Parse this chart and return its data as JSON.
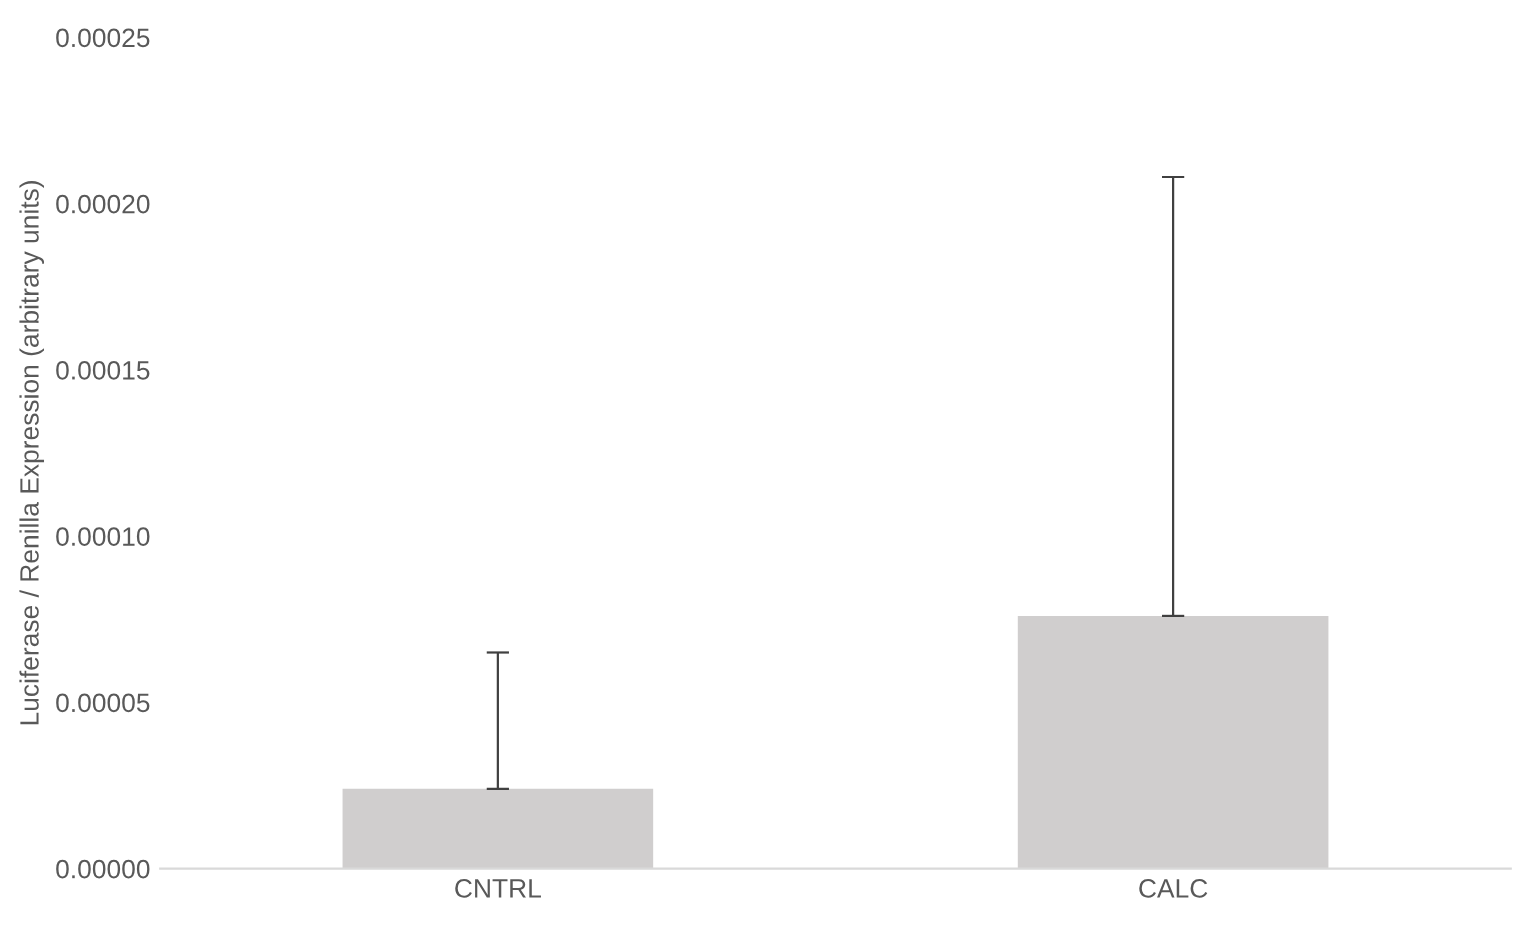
{
  "chart_data": {
    "type": "bar",
    "ylabel": "Luciferase / Renilla Expression (arbitrary units)",
    "categories": [
      "CNTRL",
      "CALC"
    ],
    "values": [
      2.4e-05,
      7.6e-05
    ],
    "errors": [
      [
        2.4e-05,
        6.5e-05
      ],
      [
        7.6e-05,
        0.000208
      ]
    ],
    "color": "#d0cece",
    "ylim": [
      0,
      0.00025
    ],
    "yticks": [
      {
        "value": 0,
        "label": "0.00000"
      },
      {
        "value": 5e-05,
        "label": "0.00005"
      },
      {
        "value": 0.0001,
        "label": "0.00010"
      },
      {
        "value": 0.00015,
        "label": "0.00015"
      },
      {
        "value": 0.0002,
        "label": "0.00020"
      },
      {
        "value": 0.00025,
        "label": "0.00025"
      }
    ],
    "grid": false,
    "legend": false
  }
}
